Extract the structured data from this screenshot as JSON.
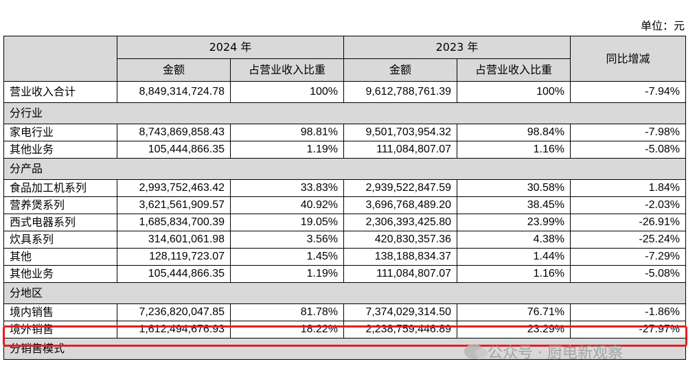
{
  "unit_label": "单位：元",
  "headers": {
    "year_2024": "2024 年",
    "year_2023": "2023 年",
    "yoy": "同比增减",
    "amount": "金额",
    "ratio": "占营业收入比重"
  },
  "rows": [
    {
      "label": "营业收入合计",
      "a24": "8,849,314,724.78",
      "r24": "100%",
      "a23": "9,612,788,761.39",
      "r23": "100%",
      "yoy": "-7.94%"
    },
    {
      "section": "分行业"
    },
    {
      "label": "家电行业",
      "a24": "8,743,869,858.43",
      "r24": "98.81%",
      "a23": "9,501,703,954.32",
      "r23": "98.84%",
      "yoy": "-7.98%"
    },
    {
      "label": "其他业务",
      "a24": "105,444,866.35",
      "r24": "1.19%",
      "a23": "111,084,807.07",
      "r23": "1.16%",
      "yoy": "-5.08%"
    },
    {
      "section": "分产品"
    },
    {
      "label": "食品加工机系列",
      "a24": "2,993,752,463.42",
      "r24": "33.83%",
      "a23": "2,939,522,847.59",
      "r23": "30.58%",
      "yoy": "1.84%"
    },
    {
      "label": "营养煲系列",
      "a24": "3,621,561,909.57",
      "r24": "40.92%",
      "a23": "3,696,768,489.20",
      "r23": "38.45%",
      "yoy": "-2.03%"
    },
    {
      "label": "西式电器系列",
      "a24": "1,685,834,700.39",
      "r24": "19.05%",
      "a23": "2,306,393,425.80",
      "r23": "23.99%",
      "yoy": "-26.91%"
    },
    {
      "label": "炊具系列",
      "a24": "314,601,061.98",
      "r24": "3.56%",
      "a23": "420,830,357.36",
      "r23": "4.38%",
      "yoy": "-25.24%"
    },
    {
      "label": "其他",
      "a24": "128,119,723.07",
      "r24": "1.45%",
      "a23": "138,188,834.37",
      "r23": "1.44%",
      "yoy": "-7.29%"
    },
    {
      "label": "其他业务",
      "a24": "105,444,866.35",
      "r24": "1.19%",
      "a23": "111,084,807.07",
      "r23": "1.16%",
      "yoy": "-5.08%"
    },
    {
      "section": "分地区"
    },
    {
      "label": "境内销售",
      "a24": "7,236,820,047.85",
      "r24": "81.78%",
      "a23": "7,374,029,314.50",
      "r23": "76.71%",
      "yoy": "-1.86%"
    },
    {
      "label": "境外销售",
      "a24": "1,612,494,676.93",
      "r24": "18.22%",
      "a23": "2,238,759,446.89",
      "r23": "23.29%",
      "yoy": "-27.97%"
    },
    {
      "section": "分销售模式"
    }
  ],
  "watermark": "公众号 · 厨电新观察"
}
